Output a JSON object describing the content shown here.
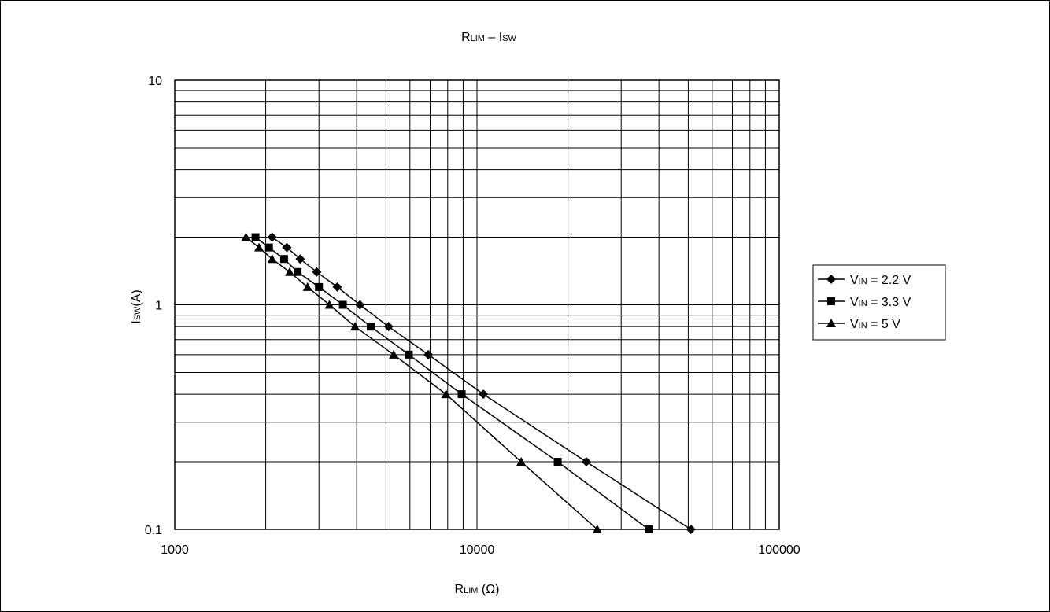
{
  "chart_data": {
    "type": "scatter",
    "title": {
      "main": "R",
      "main_sub": "LIM",
      "dash": " – I",
      "dash_sub": "SW"
    },
    "xlabel": {
      "main": "R",
      "sub": "LIM",
      "rest": " (Ω)"
    },
    "ylabel": {
      "main": "I",
      "sub": "SW",
      "rest": "(A)"
    },
    "xscale": "log",
    "yscale": "log",
    "xlim": [
      1000,
      100000
    ],
    "ylim": [
      0.1,
      10
    ],
    "x_tick_labels": [
      "1000",
      "10000",
      "100000"
    ],
    "y_tick_labels": [
      "0.1",
      "1",
      "10"
    ],
    "grid": true,
    "legend_position": "right",
    "series": [
      {
        "name": "V_IN = 2.2 V",
        "legend_main": "V",
        "legend_sub": "IN",
        "legend_rest": " = 2.2 V",
        "marker": "diamond",
        "x": [
          2100,
          2350,
          2600,
          2950,
          3450,
          4100,
          5100,
          6900,
          10500,
          23000,
          51000
        ],
        "y": [
          2.0,
          1.8,
          1.6,
          1.4,
          1.2,
          1.0,
          0.8,
          0.6,
          0.4,
          0.2,
          0.1
        ]
      },
      {
        "name": "V_IN = 3.3 V",
        "legend_main": "V",
        "legend_sub": "IN",
        "legend_rest": " = 3.3 V",
        "marker": "square",
        "x": [
          1850,
          2050,
          2300,
          2550,
          3000,
          3600,
          4450,
          5950,
          8900,
          18500,
          37000
        ],
        "y": [
          2.0,
          1.8,
          1.6,
          1.4,
          1.2,
          1.0,
          0.8,
          0.6,
          0.4,
          0.2,
          0.1
        ]
      },
      {
        "name": "V_IN = 5 V",
        "legend_main": "V",
        "legend_sub": "IN",
        "legend_rest": " = 5 V",
        "marker": "triangle",
        "x": [
          1720,
          1900,
          2100,
          2400,
          2750,
          3250,
          3950,
          5300,
          7900,
          14000,
          25000
        ],
        "y": [
          2.0,
          1.8,
          1.6,
          1.4,
          1.2,
          1.0,
          0.8,
          0.6,
          0.4,
          0.2,
          0.1
        ]
      }
    ]
  },
  "colors": {
    "line": "#000000",
    "background": "#ffffff",
    "grid": "#000000"
  }
}
